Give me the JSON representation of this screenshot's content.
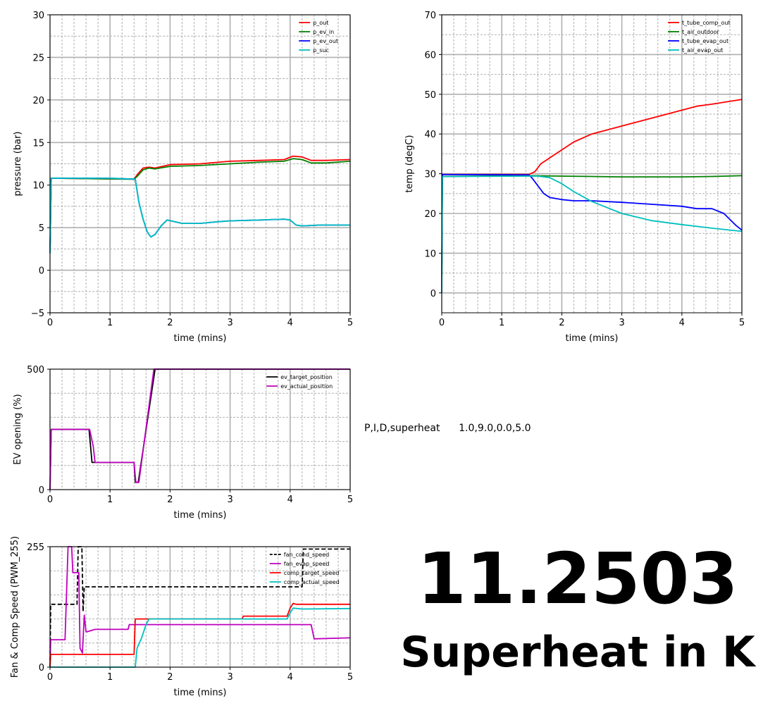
{
  "chart_data": [
    {
      "type": "line",
      "xlabel": "time (mins)",
      "ylabel": "pressure (bar)",
      "xlim": [
        0,
        5
      ],
      "ylim": [
        -5,
        30
      ],
      "xticks": [
        0,
        1,
        2,
        3,
        4,
        5
      ],
      "yticks": [
        -5,
        0,
        5,
        10,
        15,
        20,
        25,
        30
      ],
      "ytick_labels": [
        "−5",
        "0",
        "5",
        "10",
        "15",
        "20",
        "25",
        "30"
      ],
      "grid": true,
      "legend_position": "top-right",
      "series": [
        {
          "name": "p_out",
          "color": "#ff0000",
          "x": [
            0,
            0.02,
            1.4,
            1.45,
            1.55,
            1.65,
            1.75,
            2.0,
            2.5,
            3.0,
            3.5,
            3.9,
            4.05,
            4.2,
            4.35,
            4.6,
            5.0
          ],
          "y": [
            2,
            10.8,
            10.7,
            11.2,
            12.0,
            12.1,
            12.0,
            12.4,
            12.5,
            12.8,
            12.9,
            13.0,
            13.4,
            13.3,
            12.9,
            12.9,
            13.0
          ]
        },
        {
          "name": "p_ev_in",
          "color": "#008000",
          "x": [
            0,
            0.02,
            1.4,
            1.45,
            1.55,
            1.65,
            1.75,
            2.0,
            2.5,
            3.0,
            3.5,
            3.9,
            4.05,
            4.2,
            4.35,
            4.6,
            5.0
          ],
          "y": [
            2,
            10.8,
            10.7,
            11.0,
            11.8,
            12.0,
            11.9,
            12.2,
            12.3,
            12.5,
            12.7,
            12.8,
            13.1,
            13.0,
            12.6,
            12.6,
            12.8
          ]
        },
        {
          "name": "p_ev_out",
          "color": "#0000ff",
          "x": [
            0,
            0.02,
            1.0,
            1.42,
            1.48,
            1.55,
            1.62,
            1.68,
            1.75,
            1.85,
            1.95,
            2.2,
            2.5,
            2.8,
            3.0,
            3.5,
            3.9,
            4.0,
            4.1,
            4.2,
            4.5,
            5.0
          ],
          "y": [
            2,
            10.8,
            10.8,
            10.7,
            8.0,
            6.0,
            4.5,
            3.9,
            4.2,
            5.2,
            5.9,
            5.5,
            5.5,
            5.7,
            5.8,
            5.9,
            6.0,
            5.9,
            5.3,
            5.2,
            5.3,
            5.3
          ]
        },
        {
          "name": "p_suc",
          "color": "#00bfbf",
          "x": [
            0,
            0.02,
            1.0,
            1.42,
            1.48,
            1.55,
            1.62,
            1.68,
            1.75,
            1.85,
            1.95,
            2.2,
            2.5,
            2.8,
            3.0,
            3.5,
            3.9,
            4.0,
            4.1,
            4.2,
            4.5,
            5.0
          ],
          "y": [
            2,
            10.8,
            10.8,
            10.7,
            8.0,
            6.0,
            4.5,
            3.9,
            4.2,
            5.2,
            5.9,
            5.5,
            5.5,
            5.7,
            5.8,
            5.9,
            6.0,
            5.9,
            5.3,
            5.2,
            5.3,
            5.3
          ]
        }
      ]
    },
    {
      "type": "line",
      "xlabel": "time (mins)",
      "ylabel": "temp (degC)",
      "xlim": [
        0,
        5
      ],
      "ylim": [
        -5,
        70
      ],
      "xticks": [
        0,
        1,
        2,
        3,
        4,
        5
      ],
      "yticks": [
        0,
        10,
        20,
        30,
        40,
        50,
        60,
        70
      ],
      "ytick_labels": [
        "0",
        "10",
        "20",
        "30",
        "40",
        "50",
        "60",
        "70"
      ],
      "grid": true,
      "legend_position": "top-right",
      "series": [
        {
          "name": "t_tube_comp_out",
          "color": "#ff0000",
          "x": [
            0,
            0.01,
            1.45,
            1.55,
            1.65,
            1.75,
            1.9,
            2.0,
            2.2,
            2.5,
            3.0,
            3.5,
            4.0,
            4.25,
            4.5,
            5.0
          ],
          "y": [
            0,
            29.8,
            29.8,
            30.5,
            32.5,
            33.5,
            35.0,
            36.0,
            38.0,
            40.0,
            42.0,
            44.0,
            46.0,
            47.0,
            47.5,
            48.7
          ]
        },
        {
          "name": "t_air_outdoor",
          "color": "#008000",
          "x": [
            0,
            0.01,
            1.5,
            2.0,
            2.5,
            3.0,
            3.5,
            4.0,
            4.5,
            5.0
          ],
          "y": [
            0,
            29.3,
            29.5,
            29.4,
            29.3,
            29.2,
            29.2,
            29.2,
            29.3,
            29.5
          ]
        },
        {
          "name": "t_tube_evap_out",
          "color": "#0000ff",
          "x": [
            0,
            0.01,
            1.45,
            1.5,
            1.6,
            1.7,
            1.8,
            2.0,
            2.2,
            2.5,
            3.0,
            3.5,
            4.0,
            4.25,
            4.5,
            4.7,
            4.9,
            5.0
          ],
          "y": [
            0,
            29.8,
            29.7,
            29.0,
            27.0,
            25.0,
            24.0,
            23.5,
            23.2,
            23.2,
            22.8,
            22.3,
            21.8,
            21.2,
            21.2,
            20.0,
            17.0,
            15.8
          ]
        },
        {
          "name": "t_air_evap_out",
          "color": "#00bfbf",
          "x": [
            0,
            0.01,
            1.6,
            1.8,
            2.0,
            2.2,
            2.5,
            3.0,
            3.5,
            4.0,
            4.5,
            5.0
          ],
          "y": [
            0,
            29.3,
            29.4,
            29.0,
            27.5,
            25.5,
            23.0,
            20.0,
            18.2,
            17.2,
            16.3,
            15.5
          ]
        }
      ]
    },
    {
      "type": "line",
      "xlabel": "time (mins)",
      "ylabel": "EV opening (%)",
      "xlim": [
        0,
        5
      ],
      "ylim": [
        0,
        500
      ],
      "xticks": [
        0,
        1,
        2,
        3,
        4,
        5
      ],
      "yticks": [
        0,
        500
      ],
      "ytick_labels": [
        "0",
        "500"
      ],
      "grid": true,
      "legend_position": "top-right",
      "series": [
        {
          "name": "ev_target_position",
          "color": "#000000",
          "x": [
            0,
            0.02,
            0.65,
            0.7,
            1.4,
            1.42,
            1.47,
            1.75,
            5.0
          ],
          "y": [
            0,
            250,
            250,
            113,
            113,
            30,
            30,
            500,
            500
          ]
        },
        {
          "name": "ev_actual_position",
          "color": "#bf00bf",
          "x": [
            0,
            0.02,
            0.66,
            0.72,
            0.75,
            1.4,
            1.43,
            1.48,
            1.73,
            5.0
          ],
          "y": [
            0,
            250,
            250,
            180,
            113,
            113,
            30,
            30,
            500,
            500
          ]
        }
      ]
    },
    {
      "type": "line",
      "xlabel": "time (mins)",
      "ylabel": "Fan & Comp Speed (PWM_255)",
      "xlim": [
        0,
        5
      ],
      "ylim": [
        0,
        255
      ],
      "xticks": [
        0,
        1,
        2,
        3,
        4,
        5
      ],
      "yticks": [
        0,
        255
      ],
      "ytick_labels": [
        "0",
        "255"
      ],
      "grid": true,
      "legend_position": "top-right",
      "series": [
        {
          "name": "fan_cond_speed",
          "color": "#000000",
          "dash": true,
          "x": [
            0,
            0.01,
            0.45,
            0.47,
            0.53,
            0.55,
            0.57,
            0.6,
            4.2,
            4.22,
            5.0
          ],
          "y": [
            0,
            133,
            133,
            255,
            255,
            118,
            170,
            170,
            170,
            250,
            250
          ]
        },
        {
          "name": "fan_evap_speed",
          "color": "#bf00bf",
          "x": [
            0,
            0.01,
            0.25,
            0.3,
            0.36,
            0.38,
            0.48,
            0.5,
            0.54,
            0.57,
            0.6,
            0.62,
            0.75,
            1.3,
            1.32,
            4.35,
            4.4,
            5.0
          ],
          "y": [
            0,
            58,
            58,
            255,
            255,
            200,
            200,
            40,
            30,
            110,
            75,
            75,
            80,
            80,
            90,
            90,
            60,
            62
          ]
        },
        {
          "name": "comp_target_speed",
          "color": "#ff0000",
          "x": [
            0,
            0.01,
            1.4,
            1.42,
            3.2,
            3.22,
            3.95,
            4.0,
            4.05,
            4.1,
            5.0
          ],
          "y": [
            0,
            27,
            27,
            102,
            102,
            108,
            108,
            125,
            135,
            133,
            133
          ]
        },
        {
          "name": "comp_actual_speed",
          "color": "#00bfbf",
          "x": [
            0,
            1.42,
            1.45,
            1.52,
            1.6,
            1.65,
            3.95,
            4.0,
            4.05,
            4.2,
            5.0
          ],
          "y": [
            0,
            0,
            40,
            60,
            90,
            102,
            102,
            115,
            125,
            123,
            124
          ]
        }
      ]
    }
  ],
  "annotation": {
    "pid_label": "P,I,D,superheat",
    "pid_values": "1.0,9.0,0.0,5.0",
    "value": "11.2503",
    "caption": "Superheat in K"
  }
}
